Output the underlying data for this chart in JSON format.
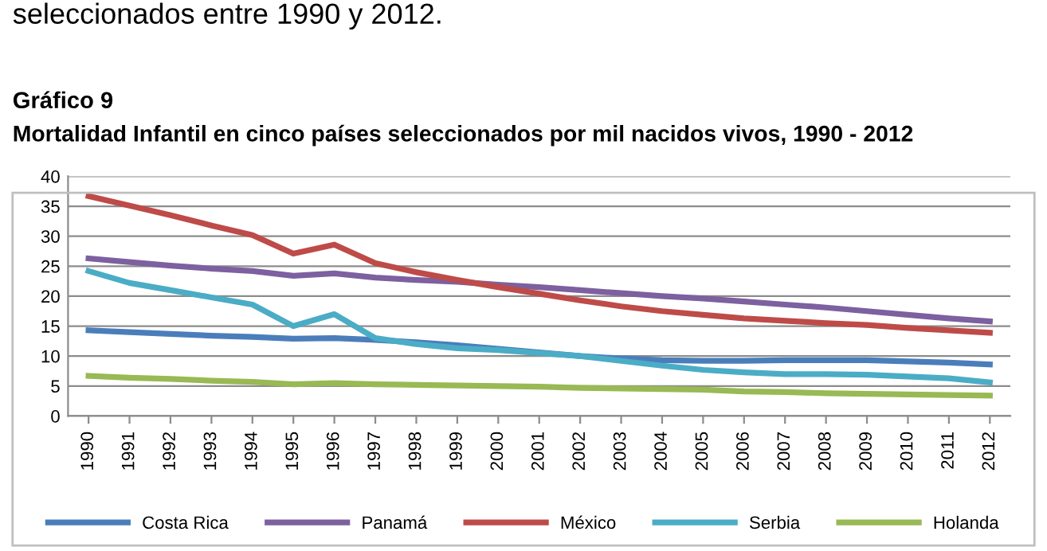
{
  "chart_data": {
    "type": "line",
    "title": "Mortalidad Infantil en cinco países seleccionados por mil nacidos vivos, 1990 - 2012",
    "subtitle": "Gráfico 9",
    "annotations": [
      "seleccionados entre 1990 y 2012."
    ],
    "categories": [
      "1990",
      "1991",
      "1992",
      "1993",
      "1994",
      "1995",
      "1996",
      "1997",
      "1998",
      "1999",
      "2000",
      "2001",
      "2002",
      "2003",
      "2004",
      "2005",
      "2006",
      "2007",
      "2008",
      "2009",
      "2010",
      "2011",
      "2012"
    ],
    "series": [
      {
        "name": "Costa Rica",
        "color": "#4a7ebb",
        "values": [
          14.3,
          14.0,
          13.7,
          13.4,
          13.2,
          12.9,
          13.0,
          12.7,
          12.3,
          11.8,
          11.2,
          10.6,
          10.0,
          9.6,
          9.3,
          9.2,
          9.2,
          9.3,
          9.3,
          9.3,
          9.1,
          8.9,
          8.6
        ]
      },
      {
        "name": "Panamá",
        "color": "#7d60a0",
        "values": [
          26.3,
          25.7,
          25.1,
          24.6,
          24.2,
          23.4,
          23.8,
          23.1,
          22.7,
          22.4,
          21.9,
          21.5,
          21.0,
          20.5,
          20.0,
          19.6,
          19.1,
          18.6,
          18.1,
          17.5,
          16.9,
          16.3,
          15.8
        ]
      },
      {
        "name": "México",
        "color": "#be4b48",
        "values": [
          36.7,
          35.1,
          33.5,
          31.8,
          30.2,
          27.1,
          28.6,
          25.5,
          24.0,
          22.7,
          21.5,
          20.4,
          19.3,
          18.3,
          17.5,
          16.9,
          16.3,
          15.9,
          15.5,
          15.2,
          14.7,
          14.3,
          13.9
        ]
      },
      {
        "name": "Serbia",
        "color": "#4bacc6",
        "values": [
          24.2,
          22.2,
          21.0,
          19.8,
          18.6,
          15.0,
          17.0,
          13.0,
          12.0,
          11.3,
          11.0,
          10.5,
          10.0,
          9.2,
          8.4,
          7.7,
          7.3,
          7.0,
          7.0,
          6.9,
          6.6,
          6.3,
          5.6
        ]
      },
      {
        "name": "Holanda",
        "color": "#98b954",
        "values": [
          6.7,
          6.4,
          6.2,
          5.9,
          5.7,
          5.3,
          5.5,
          5.3,
          5.2,
          5.1,
          5.0,
          4.9,
          4.7,
          4.6,
          4.5,
          4.4,
          4.1,
          4.0,
          3.8,
          3.7,
          3.6,
          3.5,
          3.4
        ]
      }
    ],
    "ylim": [
      0,
      40
    ],
    "yticks": [
      0,
      5,
      10,
      15,
      20,
      25,
      30,
      35,
      40
    ],
    "grid": "y",
    "legend": "bottom",
    "marker": "none",
    "line_style": "solid"
  }
}
